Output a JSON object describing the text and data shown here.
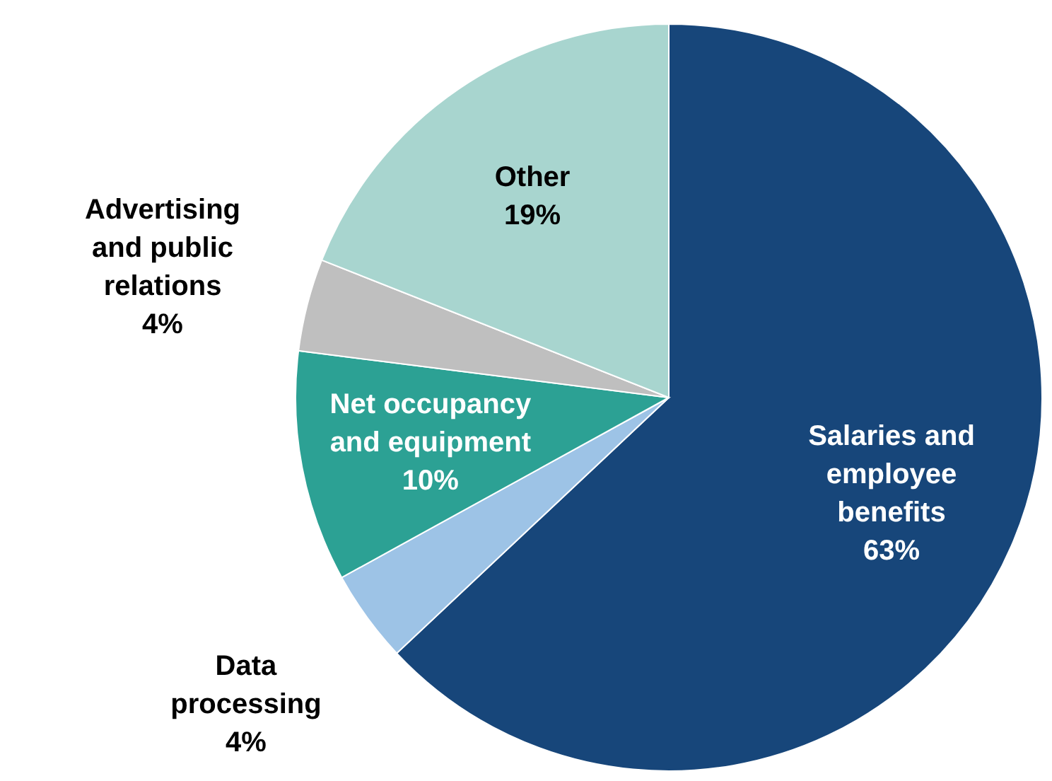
{
  "chart_data": {
    "type": "pie",
    "categories": [
      "Salaries and employee benefits",
      "Data processing",
      "Net occupancy and equipment",
      "Advertising and public relations",
      "Other"
    ],
    "values": [
      63,
      4,
      10,
      4,
      19
    ],
    "value_labels": [
      "63%",
      "4%",
      "10%",
      "4%",
      "19%"
    ],
    "colors": [
      "#17467a",
      "#9dc3e6",
      "#2ca194",
      "#bfbfbf",
      "#a8d5cf"
    ]
  }
}
